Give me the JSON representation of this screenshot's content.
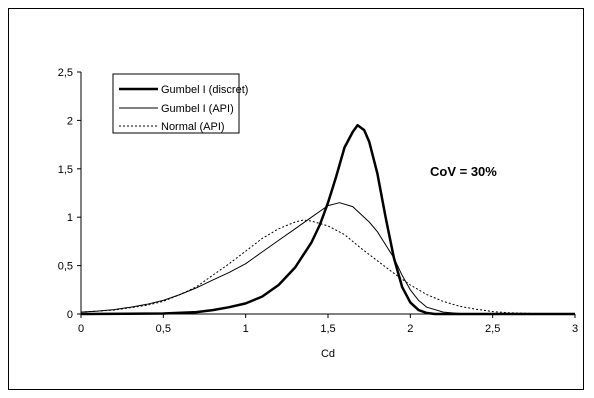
{
  "chart_data": {
    "type": "line",
    "title": "",
    "xlabel": "Cd",
    "ylabel": "",
    "xlim": [
      0,
      3
    ],
    "ylim": [
      0,
      2.5
    ],
    "xticks": [
      "0",
      "0,5",
      "1",
      "1,5",
      "2",
      "2,5",
      "3"
    ],
    "yticks": [
      "0",
      "0,5",
      "1",
      "1,5",
      "2",
      "2,5"
    ],
    "grid": false,
    "legend_position": "top-left",
    "annotation": "CoV = 30%",
    "series": [
      {
        "name": "Gumbel I (discret)",
        "style": "thick-solid",
        "points": [
          [
            0,
            0
          ],
          [
            0.5,
            0.005
          ],
          [
            0.7,
            0.02
          ],
          [
            0.8,
            0.04
          ],
          [
            0.9,
            0.07
          ],
          [
            1.0,
            0.11
          ],
          [
            1.1,
            0.18
          ],
          [
            1.2,
            0.3
          ],
          [
            1.3,
            0.48
          ],
          [
            1.4,
            0.74
          ],
          [
            1.45,
            0.92
          ],
          [
            1.5,
            1.15
          ],
          [
            1.55,
            1.42
          ],
          [
            1.6,
            1.72
          ],
          [
            1.65,
            1.88
          ],
          [
            1.68,
            1.95
          ],
          [
            1.72,
            1.9
          ],
          [
            1.75,
            1.78
          ],
          [
            1.8,
            1.45
          ],
          [
            1.85,
            1.0
          ],
          [
            1.9,
            0.58
          ],
          [
            1.95,
            0.28
          ],
          [
            2.0,
            0.12
          ],
          [
            2.05,
            0.04
          ],
          [
            2.1,
            0.01
          ],
          [
            2.15,
            0
          ],
          [
            3.0,
            0
          ]
        ]
      },
      {
        "name": "Gumbel I (API)",
        "style": "thin-solid",
        "points": [
          [
            0,
            0.02
          ],
          [
            0.1,
            0.03
          ],
          [
            0.2,
            0.045
          ],
          [
            0.3,
            0.07
          ],
          [
            0.4,
            0.1
          ],
          [
            0.5,
            0.14
          ],
          [
            0.6,
            0.2
          ],
          [
            0.7,
            0.27
          ],
          [
            0.8,
            0.35
          ],
          [
            0.9,
            0.43
          ],
          [
            1.0,
            0.52
          ],
          [
            1.1,
            0.64
          ],
          [
            1.2,
            0.76
          ],
          [
            1.3,
            0.88
          ],
          [
            1.4,
            1.0
          ],
          [
            1.5,
            1.12
          ],
          [
            1.57,
            1.15
          ],
          [
            1.65,
            1.11
          ],
          [
            1.75,
            0.95
          ],
          [
            1.8,
            0.85
          ],
          [
            1.9,
            0.58
          ],
          [
            1.95,
            0.4
          ],
          [
            2.0,
            0.25
          ],
          [
            2.05,
            0.14
          ],
          [
            2.1,
            0.07
          ],
          [
            2.2,
            0.02
          ],
          [
            2.3,
            0.005
          ],
          [
            2.5,
            0
          ],
          [
            3.0,
            0
          ]
        ]
      },
      {
        "name": "Normal (API)",
        "style": "dotted",
        "points": [
          [
            0,
            0.02
          ],
          [
            0.2,
            0.04
          ],
          [
            0.4,
            0.09
          ],
          [
            0.5,
            0.13
          ],
          [
            0.6,
            0.2
          ],
          [
            0.7,
            0.28
          ],
          [
            0.8,
            0.4
          ],
          [
            0.9,
            0.52
          ],
          [
            1.0,
            0.65
          ],
          [
            1.1,
            0.78
          ],
          [
            1.2,
            0.88
          ],
          [
            1.3,
            0.95
          ],
          [
            1.35,
            0.97
          ],
          [
            1.4,
            0.96
          ],
          [
            1.5,
            0.91
          ],
          [
            1.6,
            0.82
          ],
          [
            1.7,
            0.68
          ],
          [
            1.8,
            0.55
          ],
          [
            1.9,
            0.42
          ],
          [
            2.0,
            0.3
          ],
          [
            2.1,
            0.2
          ],
          [
            2.2,
            0.13
          ],
          [
            2.3,
            0.08
          ],
          [
            2.4,
            0.05
          ],
          [
            2.5,
            0.025
          ],
          [
            2.6,
            0.012
          ],
          [
            2.75,
            0.005
          ],
          [
            3.0,
            0
          ]
        ]
      }
    ]
  }
}
